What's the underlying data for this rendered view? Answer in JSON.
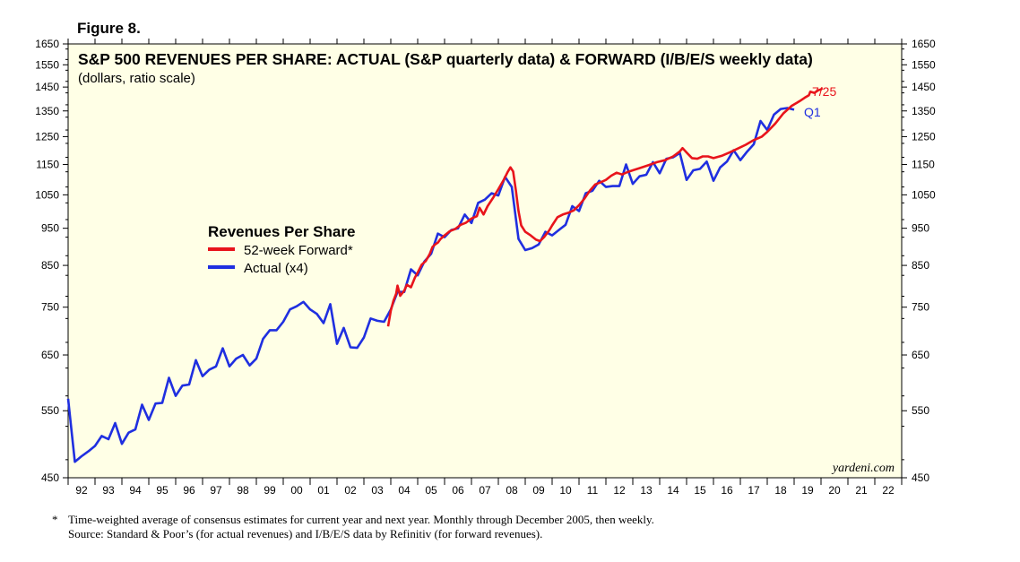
{
  "figure_label": "Figure 8.",
  "footnote_marker": "*",
  "footnote_1": "Time-weighted average of consensus estimates for current year and next year. Monthly through December 2005, then weekly.",
  "footnote_2": "Source: Standard & Poor’s (for actual revenues) and I/B/E/S data by Refinitiv (for forward revenues).",
  "chart_data": {
    "type": "line",
    "title": "S&P 500 REVENUES PER SHARE: ACTUAL (S&P quarterly data) & FORWARD (I/B/E/S weekly data)",
    "subtitle": "(dollars, ratio scale)",
    "watermark": "yardeni.com",
    "y_scale": "log",
    "ylim": [
      450,
      1650
    ],
    "xlim": [
      1992,
      2023
    ],
    "grid": false,
    "background": "#ffffe6",
    "legend_title": "Revenues Per Share",
    "legend_position": "center-left",
    "y_ticks": [
      450,
      550,
      650,
      750,
      850,
      950,
      1050,
      1150,
      1250,
      1350,
      1450,
      1550,
      1650
    ],
    "y_tick_labels": [
      "450",
      "550",
      "650",
      "750",
      "850",
      "950",
      "1050",
      "1150",
      "1250",
      "1350",
      "1450",
      "1550",
      "1650"
    ],
    "x_tick_labels": [
      "92",
      "93",
      "94",
      "95",
      "96",
      "97",
      "98",
      "99",
      "00",
      "01",
      "02",
      "03",
      "04",
      "05",
      "06",
      "07",
      "08",
      "09",
      "10",
      "11",
      "12",
      "13",
      "14",
      "15",
      "16",
      "17",
      "18",
      "19",
      "20",
      "21",
      "22"
    ],
    "series": [
      {
        "name": "52-week Forward*",
        "color": "#e8141b",
        "end_label": "7/25",
        "points": [
          [
            2003.9,
            708
          ],
          [
            2004.0,
            742
          ],
          [
            2004.1,
            765
          ],
          [
            2004.2,
            781
          ],
          [
            2004.25,
            800
          ],
          [
            2004.35,
            776
          ],
          [
            2004.5,
            788
          ],
          [
            2004.6,
            802
          ],
          [
            2004.75,
            796
          ],
          [
            2004.9,
            820
          ],
          [
            2005.0,
            832
          ],
          [
            2005.15,
            852
          ],
          [
            2005.3,
            861
          ],
          [
            2005.45,
            880
          ],
          [
            2005.55,
            898
          ],
          [
            2005.65,
            905
          ],
          [
            2005.75,
            910
          ],
          [
            2005.85,
            920
          ],
          [
            2006.0,
            930
          ],
          [
            2006.2,
            942
          ],
          [
            2006.4,
            948
          ],
          [
            2006.6,
            960
          ],
          [
            2006.8,
            966
          ],
          [
            2007.0,
            978
          ],
          [
            2007.2,
            985
          ],
          [
            2007.3,
            1010
          ],
          [
            2007.45,
            990
          ],
          [
            2007.6,
            1015
          ],
          [
            2007.8,
            1040
          ],
          [
            2008.0,
            1068
          ],
          [
            2008.2,
            1098
          ],
          [
            2008.35,
            1125
          ],
          [
            2008.45,
            1140
          ],
          [
            2008.55,
            1126
          ],
          [
            2008.65,
            1065
          ],
          [
            2008.75,
            1000
          ],
          [
            2008.85,
            958
          ],
          [
            2009.0,
            940
          ],
          [
            2009.2,
            930
          ],
          [
            2009.4,
            918
          ],
          [
            2009.55,
            914
          ],
          [
            2009.7,
            925
          ],
          [
            2009.9,
            945
          ],
          [
            2010.0,
            958
          ],
          [
            2010.2,
            982
          ],
          [
            2010.4,
            990
          ],
          [
            2010.6,
            995
          ],
          [
            2010.8,
            1002
          ],
          [
            2011.0,
            1018
          ],
          [
            2011.2,
            1038
          ],
          [
            2011.4,
            1063
          ],
          [
            2011.6,
            1083
          ],
          [
            2011.8,
            1090
          ],
          [
            2012.0,
            1098
          ],
          [
            2012.2,
            1112
          ],
          [
            2012.4,
            1122
          ],
          [
            2012.6,
            1116
          ],
          [
            2012.8,
            1124
          ],
          [
            2013.0,
            1130
          ],
          [
            2013.3,
            1139
          ],
          [
            2013.6,
            1148
          ],
          [
            2013.9,
            1158
          ],
          [
            2014.2,
            1165
          ],
          [
            2014.5,
            1178
          ],
          [
            2014.75,
            1196
          ],
          [
            2014.85,
            1208
          ],
          [
            2015.0,
            1192
          ],
          [
            2015.2,
            1172
          ],
          [
            2015.4,
            1170
          ],
          [
            2015.6,
            1178
          ],
          [
            2015.8,
            1178
          ],
          [
            2016.0,
            1172
          ],
          [
            2016.3,
            1180
          ],
          [
            2016.6,
            1192
          ],
          [
            2016.9,
            1206
          ],
          [
            2017.2,
            1220
          ],
          [
            2017.5,
            1237
          ],
          [
            2017.8,
            1250
          ],
          [
            2018.0,
            1268
          ],
          [
            2018.3,
            1300
          ],
          [
            2018.6,
            1340
          ],
          [
            2018.9,
            1370
          ],
          [
            2019.2,
            1390
          ],
          [
            2019.4,
            1405
          ],
          [
            2019.55,
            1415
          ],
          [
            2019.6,
            1430
          ],
          [
            2019.75,
            1425
          ],
          [
            2019.9,
            1436
          ],
          [
            2020.0,
            1440
          ],
          [
            2020.05,
            1446
          ]
        ]
      },
      {
        "name": "Actual (x4)",
        "color": "#1f2fe0",
        "end_label": "Q1",
        "points": [
          [
            1992.0,
            570
          ],
          [
            1992.25,
            472
          ],
          [
            1992.5,
            480
          ],
          [
            1992.75,
            487
          ],
          [
            1993.0,
            495
          ],
          [
            1993.25,
            510
          ],
          [
            1993.5,
            505
          ],
          [
            1993.75,
            530
          ],
          [
            1994.0,
            498
          ],
          [
            1994.25,
            515
          ],
          [
            1994.5,
            520
          ],
          [
            1994.75,
            560
          ],
          [
            1995.0,
            535
          ],
          [
            1995.25,
            562
          ],
          [
            1995.5,
            563
          ],
          [
            1995.75,
            607
          ],
          [
            1996.0,
            575
          ],
          [
            1996.25,
            593
          ],
          [
            1996.5,
            595
          ],
          [
            1996.75,
            640
          ],
          [
            1997.0,
            610
          ],
          [
            1997.25,
            622
          ],
          [
            1997.5,
            628
          ],
          [
            1997.75,
            663
          ],
          [
            1998.0,
            628
          ],
          [
            1998.25,
            643
          ],
          [
            1998.5,
            650
          ],
          [
            1998.75,
            630
          ],
          [
            1999.0,
            643
          ],
          [
            1999.25,
            682
          ],
          [
            1999.5,
            700
          ],
          [
            1999.75,
            700
          ],
          [
            2000.0,
            718
          ],
          [
            2000.25,
            745
          ],
          [
            2000.5,
            752
          ],
          [
            2000.75,
            762
          ],
          [
            2001.0,
            745
          ],
          [
            2001.25,
            735
          ],
          [
            2001.5,
            715
          ],
          [
            2001.75,
            757
          ],
          [
            2002.0,
            672
          ],
          [
            2002.25,
            705
          ],
          [
            2002.5,
            665
          ],
          [
            2002.75,
            664
          ],
          [
            2003.0,
            685
          ],
          [
            2003.25,
            725
          ],
          [
            2003.5,
            720
          ],
          [
            2003.75,
            718
          ],
          [
            2004.0,
            745
          ],
          [
            2004.25,
            785
          ],
          [
            2004.5,
            785
          ],
          [
            2004.75,
            840
          ],
          [
            2005.0,
            825
          ],
          [
            2005.25,
            860
          ],
          [
            2005.5,
            880
          ],
          [
            2005.75,
            935
          ],
          [
            2006.0,
            925
          ],
          [
            2006.25,
            945
          ],
          [
            2006.5,
            950
          ],
          [
            2006.75,
            990
          ],
          [
            2007.0,
            965
          ],
          [
            2007.25,
            1025
          ],
          [
            2007.5,
            1035
          ],
          [
            2007.75,
            1055
          ],
          [
            2008.0,
            1048
          ],
          [
            2008.25,
            1108
          ],
          [
            2008.5,
            1075
          ],
          [
            2008.75,
            920
          ],
          [
            2009.0,
            890
          ],
          [
            2009.25,
            895
          ],
          [
            2009.5,
            905
          ],
          [
            2009.75,
            940
          ],
          [
            2010.0,
            930
          ],
          [
            2010.25,
            945
          ],
          [
            2010.5,
            960
          ],
          [
            2010.75,
            1015
          ],
          [
            2011.0,
            1000
          ],
          [
            2011.25,
            1055
          ],
          [
            2011.5,
            1063
          ],
          [
            2011.75,
            1095
          ],
          [
            2012.0,
            1075
          ],
          [
            2012.25,
            1078
          ],
          [
            2012.5,
            1078
          ],
          [
            2012.75,
            1150
          ],
          [
            2013.0,
            1085
          ],
          [
            2013.25,
            1110
          ],
          [
            2013.5,
            1115
          ],
          [
            2013.75,
            1158
          ],
          [
            2014.0,
            1120
          ],
          [
            2014.25,
            1170
          ],
          [
            2014.5,
            1175
          ],
          [
            2014.75,
            1190
          ],
          [
            2015.0,
            1098
          ],
          [
            2015.25,
            1130
          ],
          [
            2015.5,
            1135
          ],
          [
            2015.75,
            1160
          ],
          [
            2016.0,
            1095
          ],
          [
            2016.25,
            1140
          ],
          [
            2016.5,
            1160
          ],
          [
            2016.75,
            1200
          ],
          [
            2017.0,
            1165
          ],
          [
            2017.25,
            1195
          ],
          [
            2017.5,
            1222
          ],
          [
            2017.75,
            1310
          ],
          [
            2018.0,
            1275
          ],
          [
            2018.25,
            1335
          ],
          [
            2018.5,
            1358
          ],
          [
            2018.75,
            1362
          ],
          [
            2019.0,
            1355
          ]
        ]
      }
    ]
  }
}
